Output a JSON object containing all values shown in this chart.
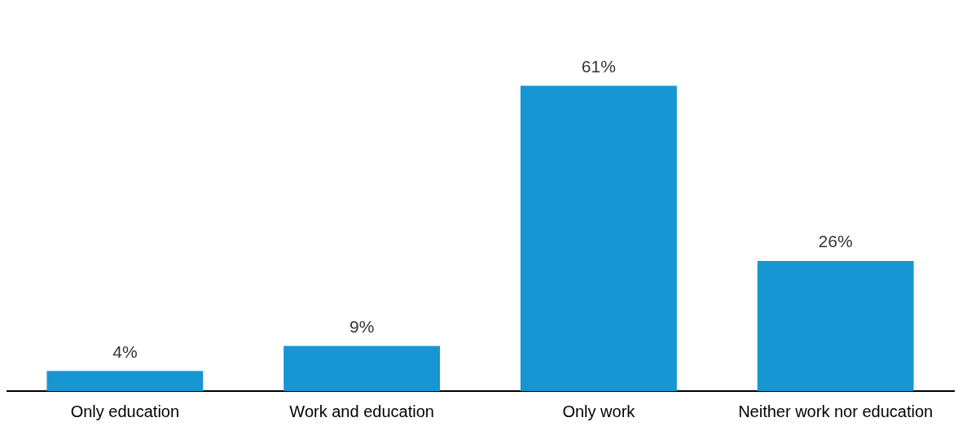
{
  "chart_data": {
    "type": "bar",
    "categories": [
      "Only education",
      "Work and education",
      "Only work",
      "Neither work nor education"
    ],
    "values": [
      4,
      9,
      61,
      26
    ],
    "color": "#1696d2",
    "value_labels": [
      "4%",
      "9%",
      "61%",
      "26%"
    ],
    "grid": false,
    "legend": false
  }
}
